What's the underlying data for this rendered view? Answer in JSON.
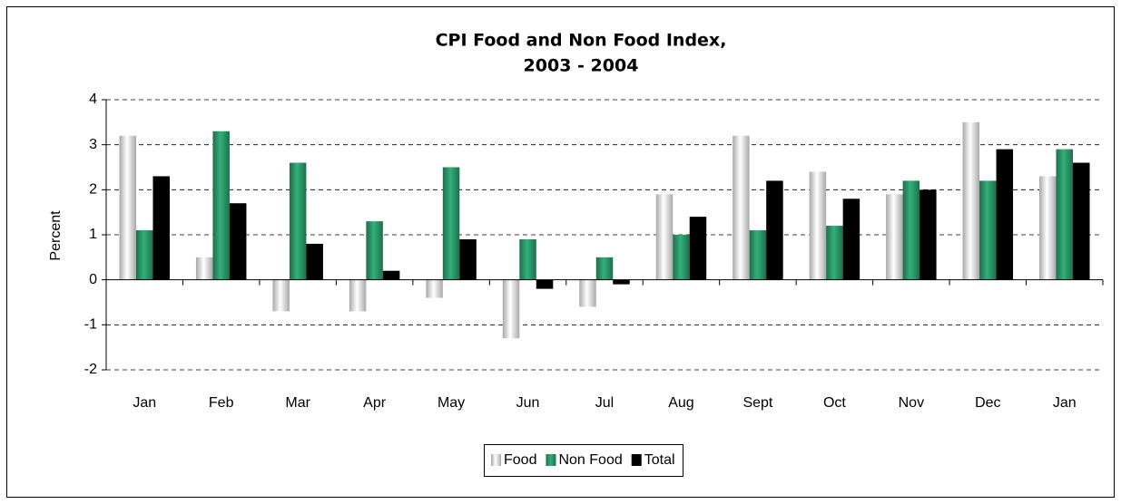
{
  "chart_data": {
    "type": "bar",
    "title": [
      "CPI Food and Non Food Index,",
      "2003 - 2004"
    ],
    "y_label": "Percent",
    "categories": [
      "Jan",
      "Feb",
      "Mar",
      "Apr",
      "May",
      "Jun",
      "Jul",
      "Aug",
      "Sept",
      "Oct",
      "Nov",
      "Dec",
      "Jan"
    ],
    "series": [
      {
        "name": "Food",
        "color": "#a8a8a8",
        "values": [
          3.2,
          0.5,
          -0.7,
          -0.7,
          -0.4,
          -1.3,
          -0.6,
          1.9,
          3.2,
          2.4,
          1.9,
          3.5,
          2.3
        ]
      },
      {
        "name": "Non Food",
        "color": "#1f6e4c",
        "values": [
          1.1,
          3.3,
          2.6,
          1.3,
          2.5,
          0.9,
          0.5,
          1.0,
          1.1,
          1.2,
          2.2,
          2.2,
          2.9
        ]
      },
      {
        "name": "Total",
        "color": "#000000",
        "values": [
          2.3,
          1.7,
          0.8,
          0.2,
          0.9,
          -0.2,
          -0.1,
          1.4,
          2.2,
          1.8,
          2.0,
          2.9,
          2.6
        ]
      }
    ],
    "ylim": [
      -2,
      4
    ],
    "yticks": [
      -2,
      -1,
      0,
      1,
      2,
      3,
      4
    ],
    "grid": true,
    "legend": "bottom"
  }
}
